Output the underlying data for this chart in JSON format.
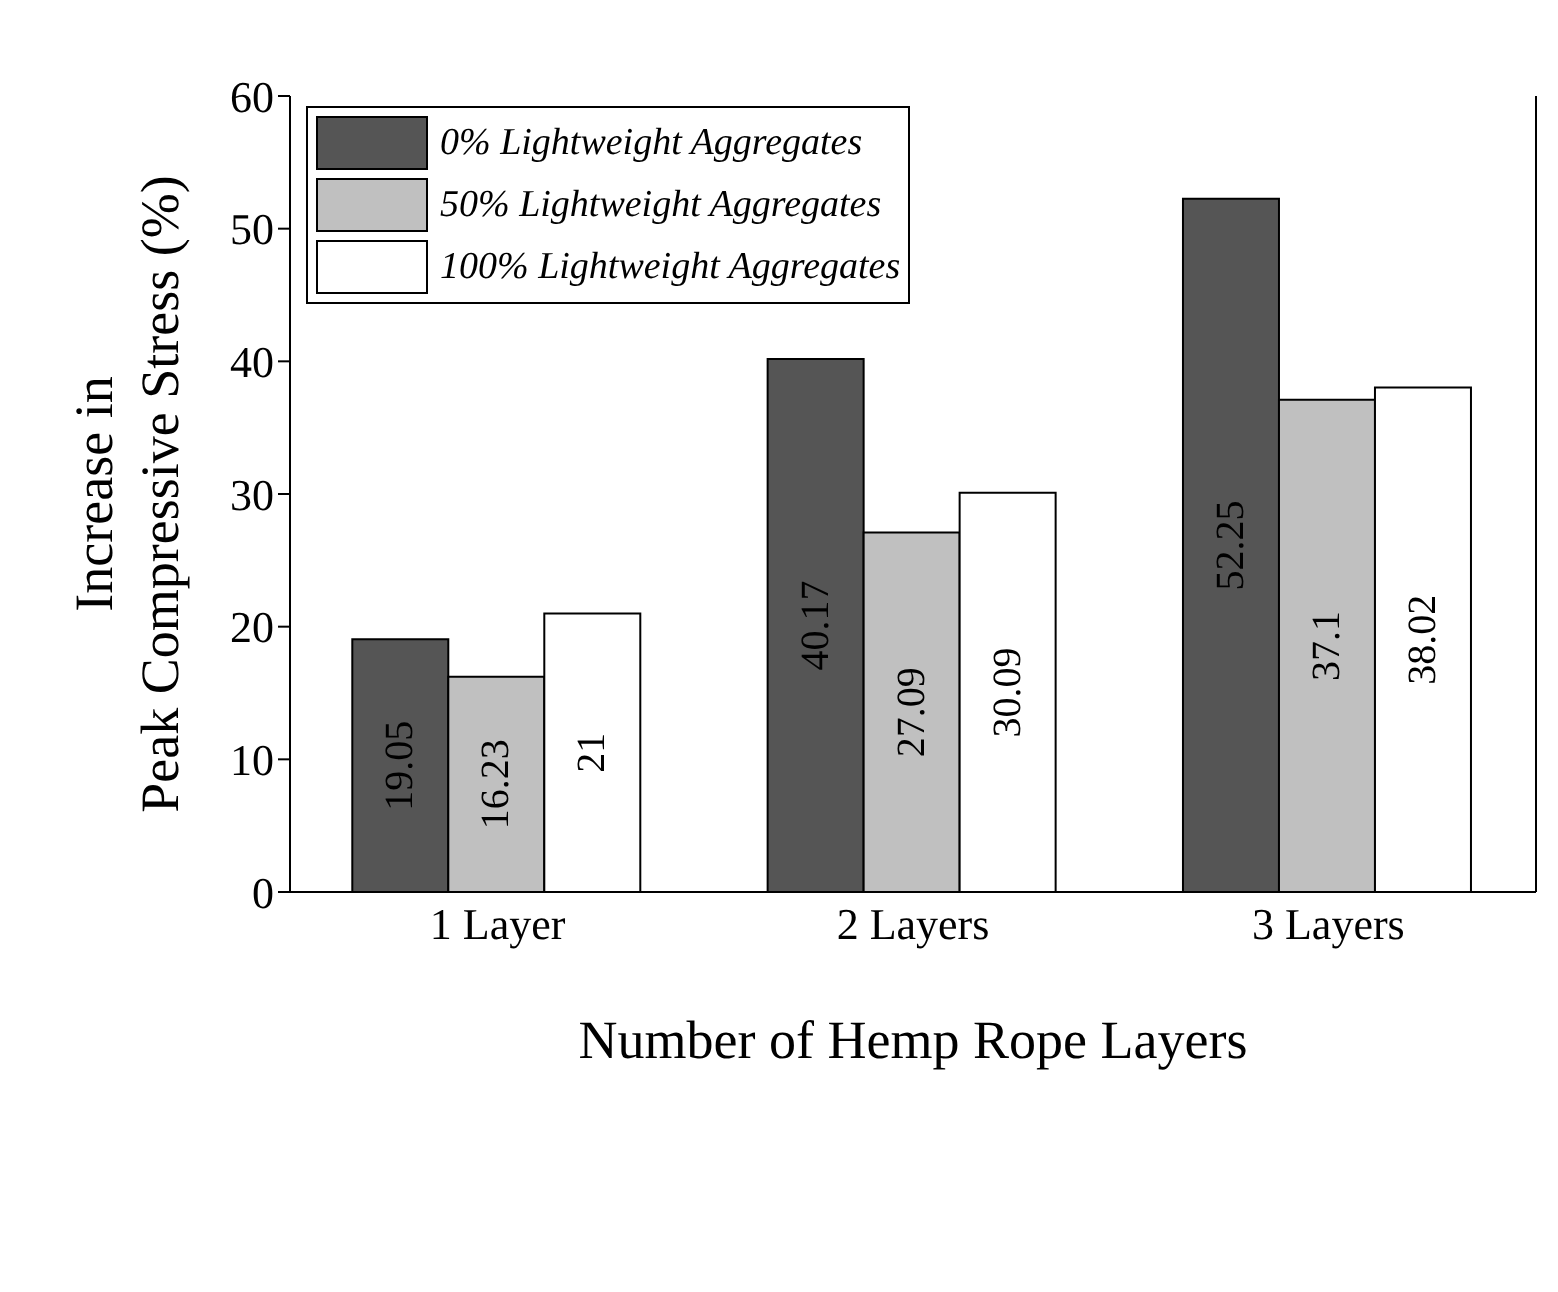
{
  "chart_data": {
    "type": "bar",
    "xlabel": "Number of Hemp Rope Layers",
    "ylabel": "Increase in\nPeak Compressive Stress (%)",
    "categories": [
      "1 Layer",
      "2 Layers",
      "3 Layers"
    ],
    "series": [
      {
        "name": "0% Lightweight Aggregates",
        "color": "#555555",
        "values": [
          19.05,
          40.17,
          52.25
        ]
      },
      {
        "name": "50% Lightweight Aggregates",
        "color": "#c0c0c0",
        "values": [
          16.23,
          27.09,
          37.1
        ]
      },
      {
        "name": "100% Lightweight Aggregates",
        "color": "#ffffff",
        "values": [
          21,
          30.09,
          38.02
        ]
      }
    ],
    "ylim": [
      0,
      60
    ],
    "yticks": [
      0,
      10,
      20,
      30,
      40,
      50,
      60
    ],
    "data_labels": true,
    "legend": "top left",
    "grid": false
  }
}
